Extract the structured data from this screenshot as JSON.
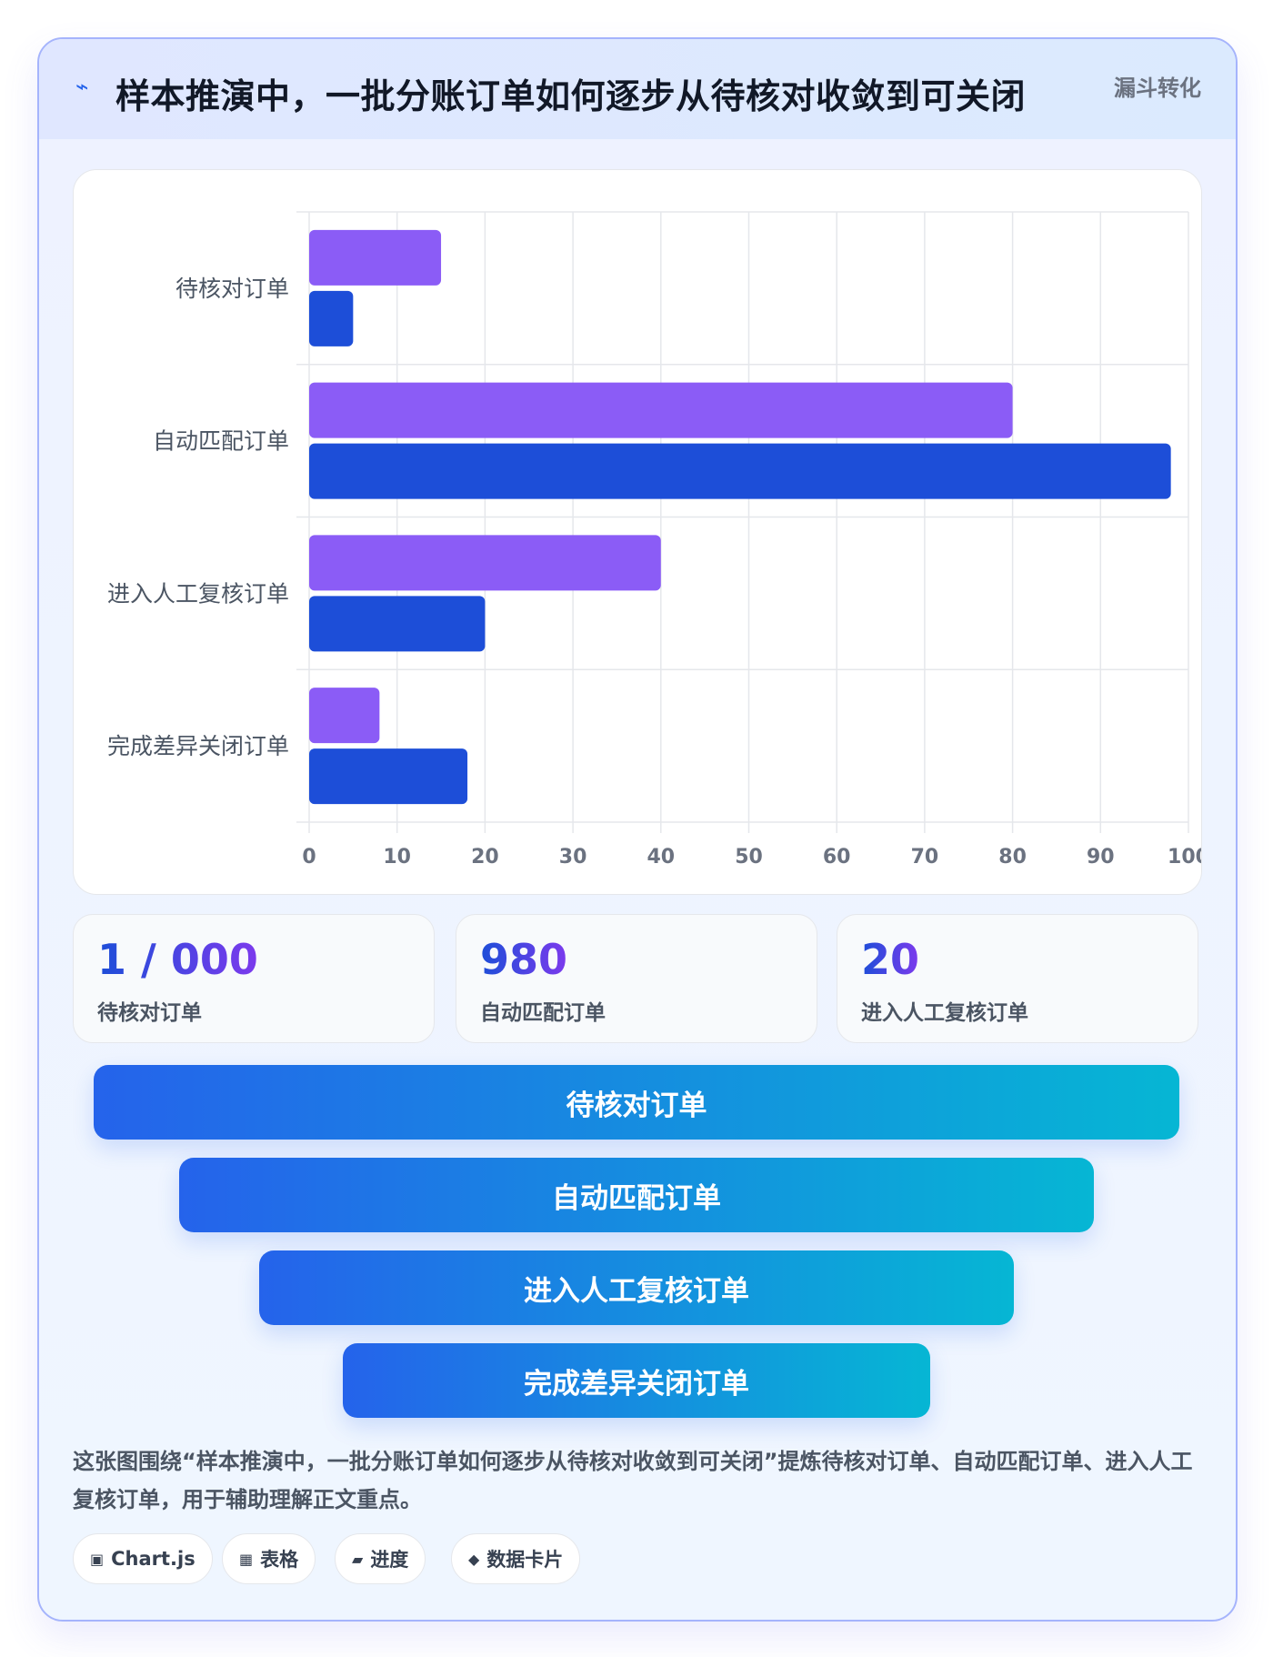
{
  "header": {
    "icon": "lightning-icon",
    "title": "样本推演中，一批分账订单如何逐步从待核对收敛到可关闭",
    "tag": "漏斗转化"
  },
  "chart_data": {
    "type": "bar",
    "orientation": "horizontal",
    "categories": [
      "待核对订单",
      "自动匹配订单",
      "进入人工复核订单",
      "完成差异关闭订单"
    ],
    "series": [
      {
        "values": [
          15,
          80,
          40,
          8
        ],
        "color": "#8b5cf6"
      },
      {
        "values": [
          5,
          98,
          20,
          18
        ],
        "color": "#1d4ed8"
      }
    ],
    "xlim": [
      0,
      100
    ],
    "xticks": [
      "0",
      "10",
      "20",
      "30",
      "40",
      "50",
      "60",
      "70",
      "80",
      "90",
      "100"
    ],
    "grid": true,
    "legend": "none"
  },
  "stats": [
    {
      "value": "1 / 000",
      "label": "待核对订单"
    },
    {
      "value": "980",
      "label": "自动匹配订单"
    },
    {
      "value": "20",
      "label": "进入人工复核订单"
    }
  ],
  "funnel": [
    {
      "label": "待核对订单"
    },
    {
      "label": "自动匹配订单"
    },
    {
      "label": "进入人工复核订单"
    },
    {
      "label": "完成差异关闭订单"
    }
  ],
  "description": "这张图围绕“样本推演中，一批分账订单如何逐步从待核对收敛到可关闭”提炼待核对订单、自动匹配订单、进入人工复核订单，用于辅助理解正文重点。",
  "chips": [
    {
      "icon": "chart-icon",
      "glyph": "▣",
      "label": "Chart.js"
    },
    {
      "icon": "table-icon",
      "glyph": "▦",
      "label": "表格"
    },
    {
      "icon": "progress-icon",
      "glyph": "▰",
      "label": "进度"
    },
    {
      "icon": "data-card-icon",
      "glyph": "◆",
      "label": "数据卡片"
    }
  ]
}
